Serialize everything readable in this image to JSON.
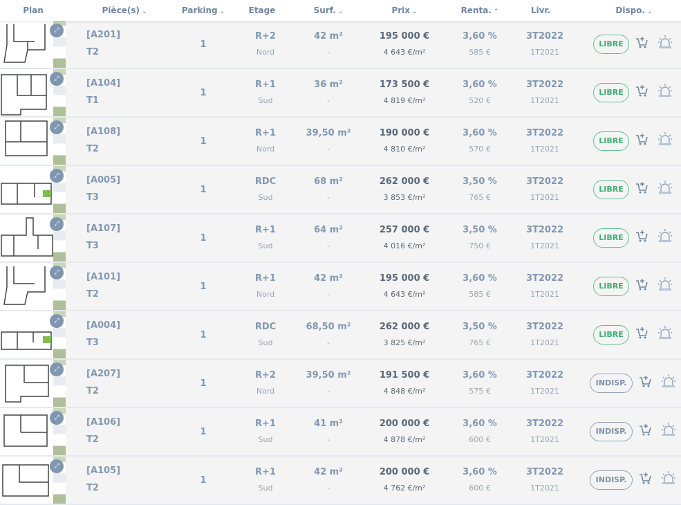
{
  "header": {
    "plan": "Plan",
    "pieces": "Pièce(s)",
    "parking": "Parking",
    "etage": "Etage",
    "surf": "Surf.",
    "prix": "Prix",
    "renta": "Renta.",
    "livr": "Livr.",
    "dispo": "Dispo."
  },
  "sort_icons": {
    "pieces": "chevron-down",
    "parking": "chevron-down",
    "surf": "chevron-down",
    "prix": "chevron-down",
    "renta": "chevron-up",
    "dispo": "chevron-down"
  },
  "colors": {
    "libre": "#3fae74",
    "indisp": "#7b90a8",
    "accent": "#7e96b1"
  },
  "rows": [
    {
      "ref": "[A201]",
      "type": "T2",
      "parking": "1",
      "etage": "R+2",
      "orient": "Nord",
      "surf": "42 m²",
      "surf2": "-",
      "prix": "195 000 €",
      "prix_m2": "4 643 €/m²",
      "renta": "3,60 %",
      "loyer": "585 €",
      "livr": "3T2022",
      "livr2": "1T2021",
      "dispo": "LIBRE"
    },
    {
      "ref": "[A104]",
      "type": "T1",
      "parking": "1",
      "etage": "R+1",
      "orient": "Sud",
      "surf": "36 m²",
      "surf2": "-",
      "prix": "173 500 €",
      "prix_m2": "4 819 €/m²",
      "renta": "3,60 %",
      "loyer": "520 €",
      "livr": "3T2022",
      "livr2": "1T2021",
      "dispo": "LIBRE"
    },
    {
      "ref": "[A108]",
      "type": "T2",
      "parking": "1",
      "etage": "R+1",
      "orient": "Nord",
      "surf": "39,50 m²",
      "surf2": "-",
      "prix": "190 000 €",
      "prix_m2": "4 810 €/m²",
      "renta": "3,60 %",
      "loyer": "570 €",
      "livr": "3T2022",
      "livr2": "1T2021",
      "dispo": "LIBRE"
    },
    {
      "ref": "[A005]",
      "type": "T3",
      "parking": "1",
      "etage": "RDC",
      "orient": "Sud",
      "surf": "68 m²",
      "surf2": "-",
      "prix": "262 000 €",
      "prix_m2": "3 853 €/m²",
      "renta": "3,50 %",
      "loyer": "765 €",
      "livr": "3T2022",
      "livr2": "1T2021",
      "dispo": "LIBRE"
    },
    {
      "ref": "[A107]",
      "type": "T3",
      "parking": "1",
      "etage": "R+1",
      "orient": "Sud",
      "surf": "64 m²",
      "surf2": "-",
      "prix": "257 000 €",
      "prix_m2": "4 016 €/m²",
      "renta": "3,50 %",
      "loyer": "750 €",
      "livr": "3T2022",
      "livr2": "1T2021",
      "dispo": "LIBRE"
    },
    {
      "ref": "[A101]",
      "type": "T2",
      "parking": "1",
      "etage": "R+1",
      "orient": "Nord",
      "surf": "42 m²",
      "surf2": "-",
      "prix": "195 000 €",
      "prix_m2": "4 643 €/m²",
      "renta": "3,60 %",
      "loyer": "585 €",
      "livr": "3T2022",
      "livr2": "1T2021",
      "dispo": "LIBRE"
    },
    {
      "ref": "[A004]",
      "type": "T3",
      "parking": "1",
      "etage": "RDC",
      "orient": "Sud",
      "surf": "68,50 m²",
      "surf2": "-",
      "prix": "262 000 €",
      "prix_m2": "3 825 €/m²",
      "renta": "3,50 %",
      "loyer": "765 €",
      "livr": "3T2022",
      "livr2": "1T2021",
      "dispo": "LIBRE"
    },
    {
      "ref": "[A207]",
      "type": "T2",
      "parking": "1",
      "etage": "R+2",
      "orient": "Nord",
      "surf": "39,50 m²",
      "surf2": "-",
      "prix": "191 500 €",
      "prix_m2": "4 848 €/m²",
      "renta": "3,60 %",
      "loyer": "575 €",
      "livr": "3T2022",
      "livr2": "1T2021",
      "dispo": "INDISP."
    },
    {
      "ref": "[A106]",
      "type": "T2",
      "parking": "1",
      "etage": "R+1",
      "orient": "Sud",
      "surf": "41 m²",
      "surf2": "-",
      "prix": "200 000 €",
      "prix_m2": "4 878 €/m²",
      "renta": "3,60 %",
      "loyer": "600 €",
      "livr": "3T2022",
      "livr2": "1T2021",
      "dispo": "INDISP."
    },
    {
      "ref": "[A105]",
      "type": "T2",
      "parking": "1",
      "etage": "R+1",
      "orient": "Sud",
      "surf": "42 m²",
      "surf2": "-",
      "prix": "200 000 €",
      "prix_m2": "4 762 €/m²",
      "renta": "3,60 %",
      "loyer": "600 €",
      "livr": "3T2022",
      "livr2": "1T2021",
      "dispo": "INDISP."
    }
  ]
}
